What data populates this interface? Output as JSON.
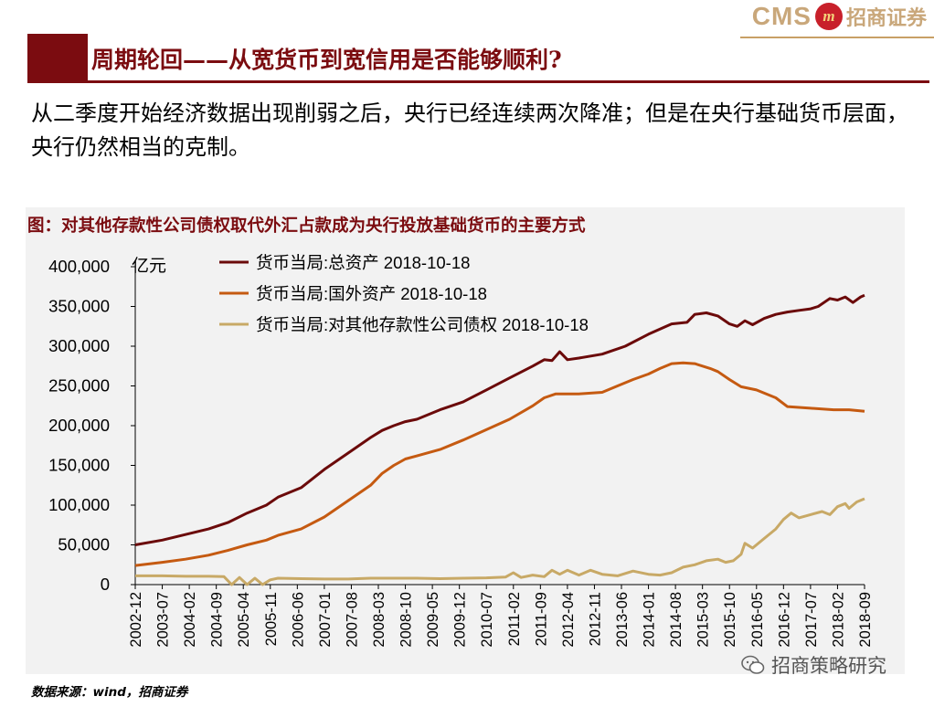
{
  "header": {
    "logo_text": "CMS",
    "logo_mark": "m",
    "logo_cn": "招商证券",
    "title": "周期轮回——从宽货币到宽信用是否能够顺利?"
  },
  "body_text": "从二季度开始经济数据出现削弱之后，央行已经连续两次降准；但是在央行基础货币层面，央行仍然相当的克制。",
  "chart_title": "图：对其他存款性公司债权取代外汇占款成为央行投放基础货币的主要方式",
  "source": "数据来源：wind，招商证券",
  "watermark": "招商策略研究",
  "colors": {
    "brand": "#7b0c10",
    "s1": "#6b0a0a",
    "s2": "#c55a11",
    "s3": "#c8a966"
  },
  "chart_data": {
    "type": "line",
    "title": "图：对其他存款性公司债权取代外汇占款成为央行投放基础货币的主要方式",
    "ylabel": "亿元",
    "ylim": [
      0,
      400000
    ],
    "yticks": [
      0,
      50000,
      100000,
      150000,
      200000,
      250000,
      300000,
      350000,
      400000
    ],
    "ytick_labels": [
      "0",
      "50,000",
      "100,000",
      "150,000",
      "200,000",
      "250,000",
      "300,000",
      "350,000",
      "400,000"
    ],
    "xlim": [
      2002.917,
      2018.667
    ],
    "xticks": [
      "2002-12",
      "2003-07",
      "2004-02",
      "2004-09",
      "2005-04",
      "2005-11",
      "2006-06",
      "2007-01",
      "2007-08",
      "2008-03",
      "2008-10",
      "2009-05",
      "2009-12",
      "2010-07",
      "2011-02",
      "2011-09",
      "2012-04",
      "2012-11",
      "2013-06",
      "2014-01",
      "2014-08",
      "2015-03",
      "2015-10",
      "2016-05",
      "2016-12",
      "2017-07",
      "2018-02",
      "2018-09"
    ],
    "legend_position": "top-left",
    "series": [
      {
        "name": "货币当局:总资产 2018-10-18",
        "x": [
          2002.917,
          2003.5,
          2004.0,
          2004.5,
          2004.917,
          2005.333,
          2005.75,
          2006.0,
          2006.5,
          2007.0,
          2007.5,
          2008.0,
          2008.25,
          2008.5,
          2008.75,
          2009.0,
          2009.5,
          2010.0,
          2010.5,
          2011.0,
          2011.5,
          2011.75,
          2011.917,
          2012.083,
          2012.25,
          2012.5,
          2013.0,
          2013.5,
          2014.0,
          2014.5,
          2014.833,
          2015.0,
          2015.25,
          2015.5,
          2015.75,
          2015.917,
          2016.083,
          2016.25,
          2016.5,
          2016.75,
          2017.0,
          2017.25,
          2017.5,
          2017.667,
          2017.917,
          2018.083,
          2018.25,
          2018.417,
          2018.583,
          2018.667
        ],
        "values": [
          50000,
          56000,
          63000,
          70000,
          78000,
          90000,
          100000,
          110000,
          122000,
          145000,
          165000,
          185000,
          194000,
          200000,
          205000,
          208000,
          220000,
          230000,
          245000,
          260000,
          275000,
          283000,
          282000,
          293000,
          283000,
          285000,
          290000,
          300000,
          315000,
          328000,
          330000,
          340000,
          342000,
          338000,
          328000,
          325000,
          332000,
          327000,
          335000,
          340000,
          343000,
          345000,
          347000,
          350000,
          360000,
          358000,
          362000,
          355000,
          362000,
          364000
        ]
      },
      {
        "name": "货币当局:国外资产 2018-10-18",
        "x": [
          2002.917,
          2003.5,
          2004.0,
          2004.5,
          2004.917,
          2005.333,
          2005.75,
          2006.0,
          2006.5,
          2007.0,
          2007.5,
          2008.0,
          2008.25,
          2008.5,
          2008.75,
          2009.0,
          2009.5,
          2010.0,
          2010.5,
          2011.0,
          2011.5,
          2011.75,
          2012.0,
          2012.5,
          2013.0,
          2013.333,
          2013.667,
          2014.0,
          2014.25,
          2014.5,
          2014.75,
          2015.0,
          2015.333,
          2015.5,
          2015.75,
          2016.0,
          2016.333,
          2016.75,
          2017.0,
          2017.5,
          2018.0,
          2018.333,
          2018.667
        ],
        "values": [
          24000,
          28000,
          32000,
          37000,
          43000,
          50000,
          56000,
          62000,
          70000,
          85000,
          105000,
          125000,
          140000,
          150000,
          158000,
          162000,
          170000,
          182000,
          195000,
          208000,
          225000,
          235000,
          240000,
          240000,
          242000,
          250000,
          258000,
          265000,
          272000,
          278000,
          279000,
          278000,
          272000,
          268000,
          258000,
          249000,
          245000,
          235000,
          224000,
          222000,
          220000,
          220000,
          218000
        ]
      },
      {
        "name": "货币当局:对其他存款性公司债权 2018-10-18",
        "x": [
          2002.917,
          2003.5,
          2004.0,
          2004.5,
          2004.833,
          2005.0,
          2005.167,
          2005.333,
          2005.5,
          2005.667,
          2005.833,
          2006.0,
          2006.5,
          2007.0,
          2007.5,
          2008.0,
          2008.5,
          2009.0,
          2009.5,
          2010.0,
          2010.5,
          2010.917,
          2011.083,
          2011.25,
          2011.5,
          2011.75,
          2011.917,
          2012.083,
          2012.25,
          2012.5,
          2012.75,
          2013.0,
          2013.333,
          2013.667,
          2014.0,
          2014.25,
          2014.5,
          2014.75,
          2015.0,
          2015.25,
          2015.5,
          2015.667,
          2015.833,
          2016.0,
          2016.083,
          2016.25,
          2016.5,
          2016.75,
          2016.917,
          2017.083,
          2017.25,
          2017.5,
          2017.75,
          2017.917,
          2018.083,
          2018.25,
          2018.333,
          2018.5,
          2018.667
        ],
        "values": [
          11000,
          11000,
          10500,
          10500,
          10000,
          0,
          9000,
          0,
          8000,
          0,
          6000,
          8000,
          7500,
          7000,
          7000,
          8000,
          8000,
          8000,
          7500,
          8000,
          8500,
          9500,
          15000,
          9000,
          12000,
          10000,
          18000,
          13000,
          18000,
          12000,
          18000,
          13000,
          11000,
          17000,
          13000,
          12000,
          15000,
          22000,
          25000,
          30000,
          32000,
          28000,
          30000,
          38000,
          52000,
          46000,
          58000,
          70000,
          82000,
          90000,
          84000,
          88000,
          92000,
          88000,
          98000,
          102000,
          96000,
          104000,
          108000
        ]
      }
    ]
  }
}
